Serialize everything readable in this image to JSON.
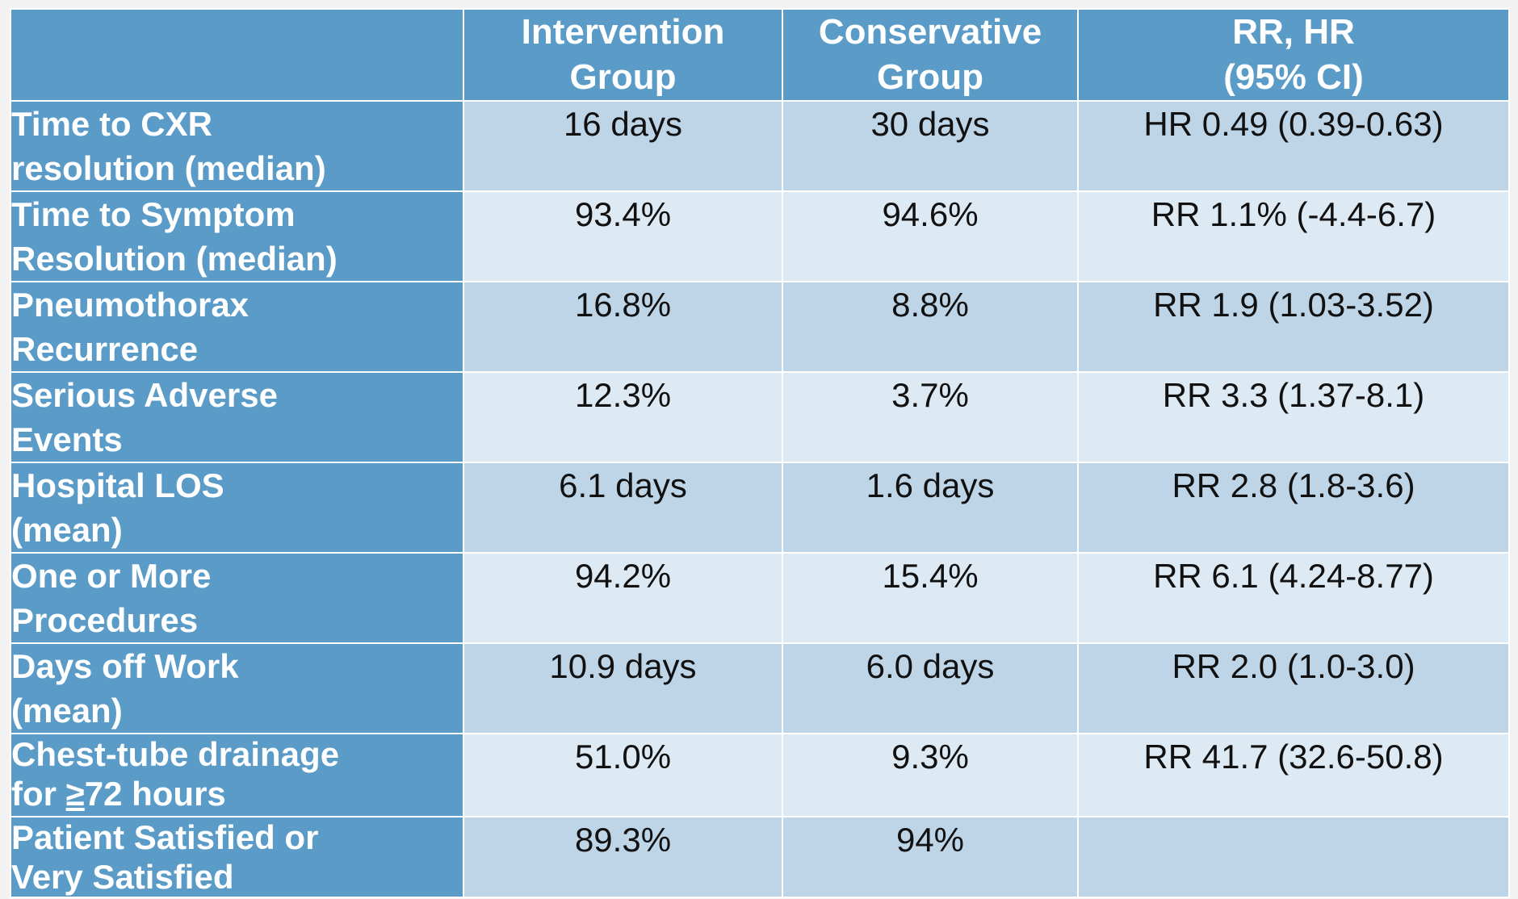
{
  "table": {
    "header": [
      "",
      "Intervention Group",
      "Conservative Group",
      "RR, HR (95% CI)"
    ],
    "header_lines": [
      [],
      [
        "Intervention",
        "Group"
      ],
      [
        "Conservative",
        "Group"
      ],
      [
        "RR, HR",
        "(95% CI)"
      ]
    ],
    "rows": [
      {
        "label_lines": [
          "Time to CXR",
          "resolution (median)"
        ],
        "intervention": "16 days",
        "conservative": "30 days",
        "ratio": "HR 0.49 (0.39-0.63)"
      },
      {
        "label_lines": [
          "Time to Symptom",
          "Resolution (median)"
        ],
        "intervention": "93.4%",
        "conservative": "94.6%",
        "ratio": "RR 1.1% (-4.4-6.7)"
      },
      {
        "label_lines": [
          "Pneumothorax",
          "Recurrence"
        ],
        "intervention": "16.8%",
        "conservative": "8.8%",
        "ratio": "RR 1.9 (1.03-3.52)"
      },
      {
        "label_lines": [
          "Serious Adverse",
          "Events"
        ],
        "intervention": "12.3%",
        "conservative": "3.7%",
        "ratio": "RR 3.3 (1.37-8.1)"
      },
      {
        "label_lines": [
          "Hospital LOS",
          "(mean)"
        ],
        "intervention": "6.1 days",
        "conservative": "1.6 days",
        "ratio": "RR 2.8 (1.8-3.6)"
      },
      {
        "label_lines": [
          "One or More",
          "Procedures"
        ],
        "intervention": "94.2%",
        "conservative": "15.4%",
        "ratio": "RR 6.1 (4.24-8.77)"
      },
      {
        "label_lines": [
          "Days off Work",
          "(mean)"
        ],
        "intervention": "10.9 days",
        "conservative": "6.0 days",
        "ratio": "RR 2.0 (1.0-3.0)"
      },
      {
        "label_lines": [
          "Chest-tube drainage",
          "for ≥72 hours"
        ],
        "label_line2_prefix": "for ",
        "label_line2_underlined": "≥",
        "label_line2_suffix": "72 hours",
        "intervention": "51.0%",
        "conservative": "9.3%",
        "ratio": "RR 41.7 (32.6-50.8)"
      },
      {
        "label_lines": [
          "Patient Satisfied or",
          "Very Satisfied"
        ],
        "intervention": "89.3%",
        "conservative": "94%",
        "ratio": ""
      }
    ]
  },
  "colors": {
    "header_blue": "#5a9bc8",
    "band_dark": "#bed5e8",
    "band_light": "#dde9f3",
    "label_text": "#ffffff",
    "value_text": "#111111"
  }
}
